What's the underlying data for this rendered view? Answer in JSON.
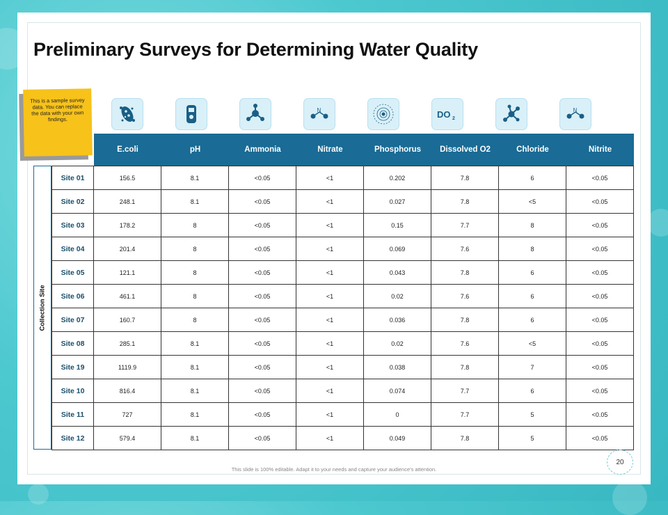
{
  "slide": {
    "title": "Preliminary Surveys for Determining Water Quality",
    "sticky_note": "This is a sample survey data. You can replace the data with your own findings.",
    "side_label": "Collection Site",
    "page_number": "20",
    "footer": "This slide is 100% editable. Adapt it to your needs and capture your audience's attention."
  },
  "icons": [
    "bacteria-icon",
    "ph-meter-icon",
    "ammonia-molecule-icon",
    "nitrate-molecule-icon",
    "phosphorus-atom-icon",
    "dissolved-oxygen-icon",
    "chloride-molecule-icon",
    "nitrite-molecule-icon"
  ],
  "icon_text": {
    "do2": "DO",
    "do2_sub": "2",
    "n": "N"
  },
  "headers": [
    "E.coli",
    "pH",
    "Ammonia",
    "Nitrate",
    "Phosphorus",
    "Dissolved O2",
    "Chloride",
    "Nitrite"
  ],
  "rows": [
    {
      "site": "Site 01",
      "values": [
        "156.5",
        "8.1",
        "<0.05",
        "<1",
        "0.202",
        "7.8",
        "6",
        "<0.05"
      ]
    },
    {
      "site": "Site 02",
      "values": [
        "248.1",
        "8.1",
        "<0.05",
        "<1",
        "0.027",
        "7.8",
        "<5",
        "<0.05"
      ]
    },
    {
      "site": "Site 03",
      "values": [
        "178.2",
        "8",
        "<0.05",
        "<1",
        "0.15",
        "7.7",
        "8",
        "<0.05"
      ]
    },
    {
      "site": "Site 04",
      "values": [
        "201.4",
        "8",
        "<0.05",
        "<1",
        "0.069",
        "7.6",
        "8",
        "<0.05"
      ]
    },
    {
      "site": "Site 05",
      "values": [
        "121.1",
        "8",
        "<0.05",
        "<1",
        "0.043",
        "7.8",
        "6",
        "<0.05"
      ]
    },
    {
      "site": "Site 06",
      "values": [
        "461.1",
        "8",
        "<0.05",
        "<1",
        "0.02",
        "7.6",
        "6",
        "<0.05"
      ]
    },
    {
      "site": "Site 07",
      "values": [
        "160.7",
        "8",
        "<0.05",
        "<1",
        "0.036",
        "7.8",
        "6",
        "<0.05"
      ]
    },
    {
      "site": "Site 08",
      "values": [
        "285.1",
        "8.1",
        "<0.05",
        "<1",
        "0.02",
        "7.6",
        "<5",
        "<0.05"
      ]
    },
    {
      "site": "Site 19",
      "values": [
        "1119.9",
        "8.1",
        "<0.05",
        "<1",
        "0.038",
        "7.8",
        "7",
        "<0.05"
      ]
    },
    {
      "site": "Site 10",
      "values": [
        "816.4",
        "8.1",
        "<0.05",
        "<1",
        "0.074",
        "7.7",
        "6",
        "<0.05"
      ]
    },
    {
      "site": "Site 11",
      "values": [
        "727",
        "8.1",
        "<0.05",
        "<1",
        "0",
        "7.7",
        "5",
        "<0.05"
      ]
    },
    {
      "site": "Site 12",
      "values": [
        "579.4",
        "8.1",
        "<0.05",
        "<1",
        "0.049",
        "7.8",
        "5",
        "<0.05"
      ]
    }
  ],
  "colors": {
    "header_bg": "#1a6b95",
    "sticky": "#f7c21a",
    "background": "#4cc8cf",
    "icon_tile": "#d9f0f8"
  }
}
